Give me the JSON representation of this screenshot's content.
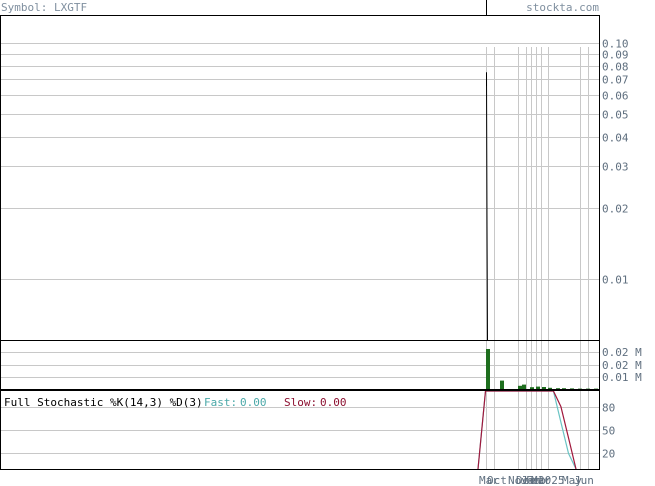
{
  "header": {
    "symbol_label": "Symbol: LXGTF",
    "site": "stockta.com"
  },
  "colors": {
    "price_line": "#000000",
    "volume_bar": "#1e6e1e",
    "fast_line": "#6ac4c4",
    "slow_line": "#a0183c",
    "fast_label": "#4aa8a8",
    "slow_label": "#8c1030",
    "grid": "#c8c8c8",
    "axis_text": "#5f6f7f"
  },
  "stochastic": {
    "title": "Full Stochastic %K(14,3) %D(3)",
    "fast_label": "Fast:",
    "fast_value": "0.00",
    "slow_label": "Slow:",
    "slow_value": "0.00"
  },
  "chart_data": [
    {
      "type": "line",
      "panel": "price",
      "scale": "log",
      "ylim": [
        0.0055,
        0.13
      ],
      "y_ticks": [
        "0.10",
        "0.09",
        "0.08",
        "0.07",
        "0.06",
        "0.05",
        "0.04",
        "0.03",
        "0.02",
        "0.01"
      ],
      "x_labels": [
        "Mar",
        "Oct",
        "Nov",
        "Dec",
        "Jan",
        "Feb",
        "Mar",
        "2025",
        "May",
        "Jun"
      ],
      "series": [
        {
          "values": [
            0.075,
            0.017,
            0.0052
          ]
        }
      ],
      "grid": true
    },
    {
      "type": "bar",
      "panel": "volume",
      "y_ticks": [
        "0.02 M",
        "0.02 M",
        "0.01 M"
      ],
      "values": [
        0.02,
        0.0042,
        0.0016,
        0.0022,
        0.0009,
        0.0012,
        0.001,
        0.0006,
        0.0004,
        0.0004,
        0.0003,
        0.0002,
        0.0002,
        0.0002
      ],
      "ylim": [
        0,
        0.024
      ],
      "grid": true
    },
    {
      "type": "line",
      "panel": "stochastic",
      "y_ticks": [
        "80",
        "50",
        "20"
      ],
      "ylim": [
        0,
        100
      ],
      "series": [
        {
          "name": "Fast",
          "values": [
            0,
            100,
            100,
            100,
            100,
            100,
            100,
            100,
            100,
            100,
            100,
            60,
            20,
            0
          ]
        },
        {
          "name": "Slow",
          "values": [
            0,
            100,
            100,
            100,
            100,
            100,
            100,
            100,
            100,
            100,
            100,
            80,
            40,
            0
          ]
        }
      ],
      "grid": true
    }
  ]
}
